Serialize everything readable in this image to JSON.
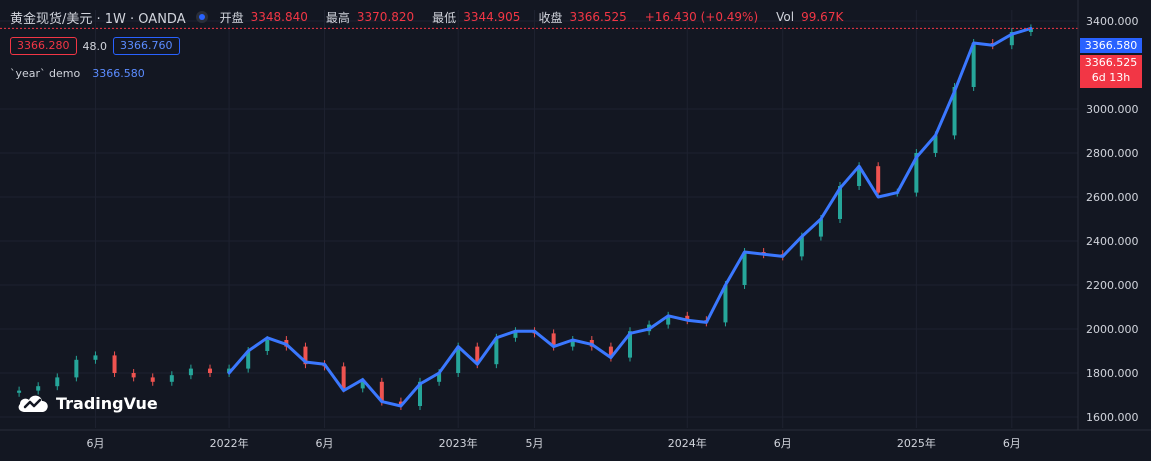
{
  "header": {
    "symbol_title": "黄金现货/美元 · 1W · OANDA",
    "open_label": "开盘",
    "open_value": "3348.840",
    "high_label": "最高",
    "high_value": "3370.820",
    "low_label": "最低",
    "low_value": "3344.905",
    "close_label": "收盘",
    "close_value": "3366.525",
    "change": "+16.430 (+0.49%)",
    "vol_label": "Vol",
    "vol_value": "99.67K"
  },
  "pricebar": {
    "sell": "3366.280",
    "spread": "48.0",
    "buy": "3366.760"
  },
  "indicator": {
    "name": "`year` demo",
    "value": "3366.580"
  },
  "price_tags": {
    "indicator": "3366.580",
    "last": "3366.525",
    "countdown": "6d 13h"
  },
  "brand": {
    "name": "TradingVue"
  },
  "colors": {
    "background": "#131722",
    "up": "#26a69a",
    "down": "#ef5350",
    "line": "#3b78ff",
    "accent": "#2962ff",
    "last_price": "#f23645"
  },
  "chart_data": {
    "type": "line",
    "title": "黄金现货/美元 · 1W · OANDA",
    "ylim": [
      1550,
      3450
    ],
    "y_ticks": [
      "1600.000",
      "1800.000",
      "2000.000",
      "2200.000",
      "2400.000",
      "2600.000",
      "2800.000",
      "3000.000",
      "3400.000"
    ],
    "x_ticks": [
      {
        "label": "6月",
        "x": "2021-06"
      },
      {
        "label": "2022年",
        "x": "2022-01"
      },
      {
        "label": "6月",
        "x": "2022-06"
      },
      {
        "label": "2023年",
        "x": "2023-01"
      },
      {
        "label": "5月",
        "x": "2023-05"
      },
      {
        "label": "2024年",
        "x": "2024-01"
      },
      {
        "label": "6月",
        "x": "2024-06"
      },
      {
        "label": "2025年",
        "x": "2025-01"
      },
      {
        "label": "6月",
        "x": "2025-06"
      }
    ],
    "series": [
      {
        "kind": "candles",
        "x": [
          "2021-02",
          "2021-03",
          "2021-04",
          "2021-05",
          "2021-06",
          "2021-07",
          "2021-08",
          "2021-09",
          "2021-10",
          "2021-11",
          "2021-12",
          "2022-01",
          "2022-02",
          "2022-03",
          "2022-04",
          "2022-05",
          "2022-06",
          "2022-07",
          "2022-08",
          "2022-09",
          "2022-10",
          "2022-11",
          "2022-12",
          "2023-01",
          "2023-02",
          "2023-03",
          "2023-04",
          "2023-05",
          "2023-06",
          "2023-07",
          "2023-08",
          "2023-09",
          "2023-10",
          "2023-11",
          "2023-12",
          "2024-01",
          "2024-02",
          "2024-03",
          "2024-04",
          "2024-05",
          "2024-06",
          "2024-07",
          "2024-08",
          "2024-09",
          "2024-10",
          "2024-11",
          "2024-12",
          "2025-01",
          "2025-02",
          "2025-03",
          "2025-04",
          "2025-05",
          "2025-06",
          "2025-07"
        ],
        "y": [
          1720,
          1740,
          1780,
          1860,
          1880,
          1800,
          1780,
          1760,
          1790,
          1820,
          1800,
          1820,
          1900,
          1950,
          1920,
          1840,
          1830,
          1730,
          1760,
          1670,
          1650,
          1760,
          1800,
          1920,
          1840,
          1960,
          1990,
          1980,
          1920,
          1950,
          1920,
          1870,
          1990,
          2020,
          2060,
          2040,
          2030,
          2200,
          2350,
          2340,
          2330,
          2420,
          2500,
          2650,
          2740,
          2620,
          2620,
          2800,
          2880,
          3100,
          3300,
          3290,
          3350,
          3366.525
        ]
      },
      {
        "kind": "line",
        "name": "`year` demo",
        "x": [
          "2022-01",
          "2022-02",
          "2022-03",
          "2022-04",
          "2022-05",
          "2022-06",
          "2022-07",
          "2022-08",
          "2022-09",
          "2022-10",
          "2022-11",
          "2022-12",
          "2023-01",
          "2023-02",
          "2023-03",
          "2023-04",
          "2023-05",
          "2023-06",
          "2023-07",
          "2023-08",
          "2023-09",
          "2023-10",
          "2023-11",
          "2023-12",
          "2024-01",
          "2024-02",
          "2024-03",
          "2024-04",
          "2024-05",
          "2024-06",
          "2024-07",
          "2024-08",
          "2024-09",
          "2024-10",
          "2024-11",
          "2024-12",
          "2025-01",
          "2025-02",
          "2025-03",
          "2025-04",
          "2025-05",
          "2025-06",
          "2025-07"
        ],
        "y": [
          1800,
          1900,
          1960,
          1930,
          1850,
          1840,
          1720,
          1770,
          1670,
          1650,
          1750,
          1800,
          1920,
          1840,
          1960,
          1990,
          1990,
          1920,
          1950,
          1930,
          1870,
          1980,
          2000,
          2060,
          2040,
          2030,
          2200,
          2350,
          2340,
          2330,
          2420,
          2500,
          2640,
          2740,
          2600,
          2620,
          2780,
          2880,
          3080,
          3300,
          3290,
          3340,
          3366.58
        ]
      }
    ],
    "last_price": 3366.525,
    "grid": true
  }
}
